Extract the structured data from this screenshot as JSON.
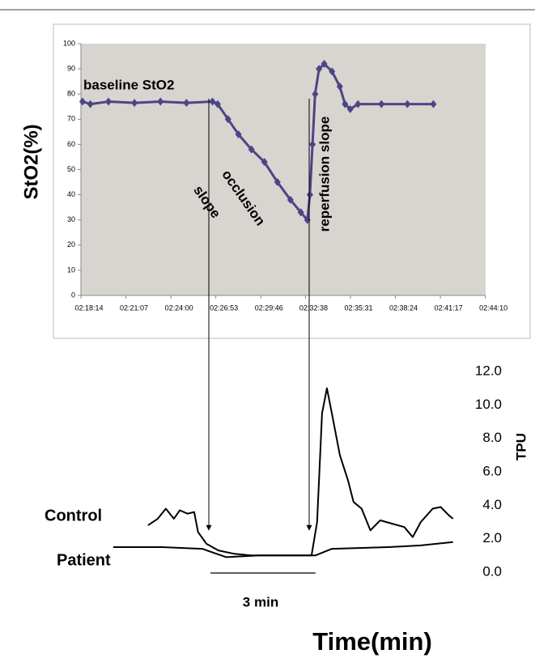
{
  "chart_data": [
    {
      "type": "line",
      "y_label": "StO2(%)",
      "annotations": [
        "baseline StO2",
        "occlusion",
        "slope",
        "reperfusion slope"
      ],
      "x": [
        8300,
        8330,
        8400,
        8500,
        8600,
        8700,
        8800,
        8820,
        8860,
        8900,
        8950,
        9000,
        9050,
        9100,
        9140,
        9165,
        9175,
        9185,
        9195,
        9210,
        9230,
        9260,
        9290,
        9310,
        9330,
        9360,
        9450,
        9550,
        9650
      ],
      "series": [
        {
          "color": "#4b4587",
          "values": [
            77,
            76,
            77,
            76.5,
            77,
            76.5,
            77,
            76,
            70,
            64,
            58,
            53,
            45,
            38,
            33,
            30,
            40,
            60,
            80,
            90,
            92,
            89,
            83,
            76,
            74,
            76,
            76,
            76,
            76
          ]
        }
      ],
      "xlim": [
        8294,
        9851
      ],
      "xticks": [
        {
          "value": 8294,
          "label": "02:18:14"
        },
        {
          "value": 8467,
          "label": "02:21:07"
        },
        {
          "value": 8640,
          "label": "02:24:00"
        },
        {
          "value": 8813,
          "label": "02:26:53"
        },
        {
          "value": 8986,
          "label": "02:29:46"
        },
        {
          "value": 9158,
          "label": "02:32:38"
        },
        {
          "value": 9331,
          "label": "02:35:31"
        },
        {
          "value": 9504,
          "label": "02:38:24"
        },
        {
          "value": 9677,
          "label": "02:41:17"
        },
        {
          "value": 9850,
          "label": "02:44:10"
        }
      ],
      "ylim": [
        0,
        100
      ],
      "yticks": [
        0,
        10,
        20,
        30,
        40,
        50,
        60,
        70,
        80,
        90,
        100
      ],
      "grid": false,
      "background": "#d8d4cf"
    },
    {
      "type": "line",
      "y_label": "TPU",
      "x_label": "Time(min)",
      "scale_bar": {
        "label": "3 min",
        "value": 3
      },
      "series": [
        {
          "name": "Control",
          "color": "#000000",
          "x": [
            0.99,
            1.27,
            1.5,
            1.73,
            1.9,
            2.12,
            2.31,
            2.42,
            2.66,
            3.0,
            3.46,
            3.93,
            4.62,
            5.66,
            5.82,
            5.96,
            6.1,
            6.24,
            6.47,
            6.7,
            6.86,
            7.09,
            7.34,
            7.62,
            7.97,
            8.31,
            8.55,
            8.78,
            9.12,
            9.35,
            9.58,
            9.7
          ],
          "values": [
            2.8,
            3.2,
            3.8,
            3.2,
            3.7,
            3.5,
            3.6,
            2.4,
            1.7,
            1.3,
            1.1,
            1.0,
            1.0,
            1.0,
            3.0,
            9.5,
            11.0,
            9.5,
            7.0,
            5.5,
            4.2,
            3.8,
            2.5,
            3.1,
            2.9,
            2.7,
            2.1,
            3.0,
            3.8,
            3.9,
            3.4,
            3.2
          ]
        },
        {
          "name": "Patient",
          "color": "#000000",
          "x": [
            0,
            1.39,
            2.54,
            3.23,
            4.16,
            5.77,
            6.24,
            7.85,
            8.78,
            9.7
          ],
          "values": [
            1.5,
            1.5,
            1.4,
            0.9,
            1.0,
            1.0,
            1.4,
            1.5,
            1.6,
            1.8
          ]
        }
      ],
      "xlim": [
        0,
        9.8
      ],
      "ylim": [
        0,
        12
      ],
      "yticks": [
        {
          "value": 0,
          "label": "0.0"
        },
        {
          "value": 2,
          "label": "2.0"
        },
        {
          "value": 4,
          "label": "4.0"
        },
        {
          "value": 6,
          "label": "6.0"
        },
        {
          "value": 8,
          "label": "8.0"
        },
        {
          "value": 10,
          "label": "10.0"
        },
        {
          "value": 12,
          "label": "12.0"
        }
      ]
    }
  ]
}
